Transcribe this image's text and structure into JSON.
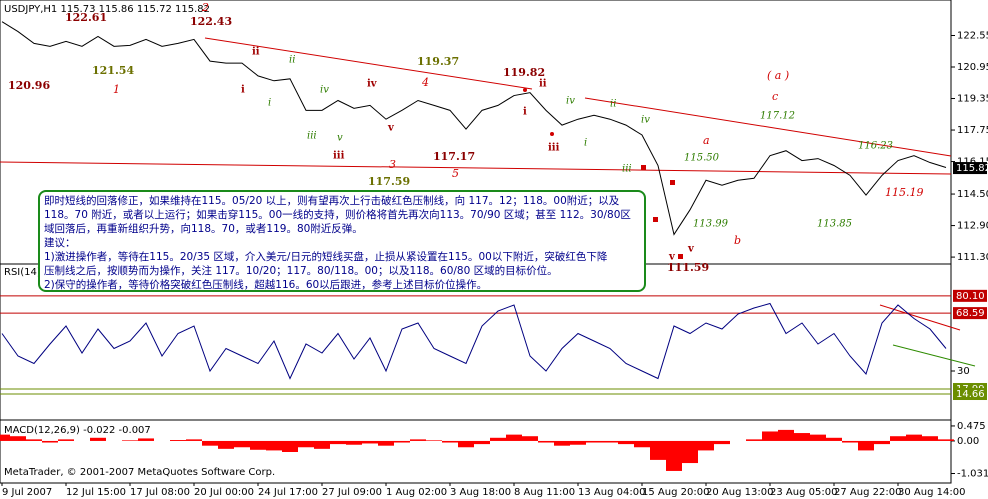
{
  "chart_data": [
    {
      "type": "line",
      "title": "USDJPY,H1  115.73 115.86 115.72 115.82",
      "color": "#000000",
      "values": [
        123.25,
        122.75,
        122.15,
        122.0,
        122.25,
        122.0,
        122.5,
        122.0,
        122.05,
        122.35,
        122.0,
        122.15,
        122.35,
        121.25,
        121.15,
        121.15,
        120.5,
        120.25,
        120.35,
        118.75,
        118.75,
        119.25,
        118.85,
        119.0,
        118.3,
        118.75,
        119.25,
        119.0,
        118.75,
        117.8,
        118.75,
        119.0,
        119.5,
        119.65,
        118.75,
        118.0,
        118.3,
        118.5,
        118.3,
        118.0,
        117.5,
        115.95,
        112.45,
        113.7,
        115.2,
        114.95,
        115.2,
        115.3,
        116.45,
        116.7,
        116.2,
        116.3,
        115.95,
        115.45,
        114.45,
        115.45,
        116.2,
        116.45,
        116.1,
        115.85
      ],
      "ylim": [
        111.0,
        124.25
      ],
      "yticks": [
        122.55,
        120.95,
        119.35,
        117.75,
        116.15,
        {
          "value": 114.5,
          "label": "114.50"
        },
        {
          "value": 112.9,
          "label": "112.90"
        },
        {
          "value": 111.3,
          "label": "111.30"
        }
      ],
      "last": 115.82,
      "annotations": [
        "122.61",
        "122.43",
        "120.96",
        "121.54",
        "119.82",
        "119.37",
        "117.17",
        "117.59",
        "111.59",
        "2",
        "1",
        "4",
        "3",
        "5",
        "( a )",
        "a",
        "b",
        "c",
        "115.19",
        "ii",
        "i",
        "iv",
        "iii",
        "v",
        "ii",
        "i",
        "iii",
        "v",
        "v",
        "ii",
        "i",
        "iv",
        "v",
        "iii",
        "iv",
        "ii",
        "i",
        "iii",
        "iv",
        "115.50",
        "117.12",
        "116.23",
        "113.99",
        "113.85"
      ]
    },
    {
      "type": "line",
      "title": "RSI(14)",
      "color": "#000080",
      "values": [
        55,
        40,
        35,
        48,
        60,
        42,
        58,
        45,
        50,
        62,
        40,
        55,
        60,
        30,
        45,
        40,
        35,
        50,
        25,
        48,
        42,
        55,
        38,
        52,
        30,
        58,
        62,
        45,
        40,
        35,
        60,
        70,
        74,
        40,
        30,
        45,
        55,
        50,
        45,
        35,
        30,
        25,
        60,
        55,
        62,
        58,
        68,
        72,
        75,
        55,
        62,
        48,
        55,
        40,
        28,
        62,
        74,
        65,
        58,
        45
      ],
      "ylim": [
        0,
        100
      ],
      "yticks": [
        30
      ],
      "levels": [
        {
          "value": 80.1,
          "label": "80.10",
          "color": "#c00000"
        },
        {
          "value": 68.59,
          "color": "#c00000"
        },
        {
          "value": 17.99,
          "color": "#6b8e00"
        },
        {
          "value": 14.66,
          "color": "#6b8e00"
        }
      ]
    },
    {
      "type": "bar",
      "title": "MACD(12,26,9) -0.022 -0.007",
      "color": "#ff0000",
      "categories": [
        "9 Jul 2007",
        null,
        null,
        null,
        "12 Jul 15:00",
        null,
        null,
        null,
        "17 Jul 08:00",
        null,
        null,
        null,
        "20 Jul 00:00",
        null,
        null,
        null,
        "24 Jul 17:00",
        null,
        null,
        null,
        "27 Jul 09:00",
        null,
        null,
        null,
        "1 Aug 02:00",
        null,
        null,
        null,
        "3 Aug 18:00",
        null,
        null,
        null,
        "8 Aug 11:00",
        null,
        null,
        null,
        "13 Aug 04:00",
        null,
        null,
        null,
        "15 Aug 20:00",
        null,
        null,
        null,
        "20 Aug 13:00",
        null,
        null,
        null,
        "23 Aug 05:00",
        null,
        null,
        null,
        "27 Aug 22:00",
        null,
        null,
        null,
        "30 Aug 14:00",
        null,
        null,
        null
      ],
      "values": [
        0.2,
        0.15,
        0.05,
        -0.05,
        0.05,
        0.0,
        0.1,
        0.0,
        0.02,
        0.08,
        0.0,
        0.03,
        0.05,
        -0.15,
        -0.25,
        -0.2,
        -0.28,
        -0.3,
        -0.35,
        -0.2,
        -0.25,
        -0.1,
        -0.12,
        -0.08,
        -0.15,
        -0.05,
        0.05,
        0.02,
        -0.05,
        -0.2,
        -0.1,
        0.1,
        0.2,
        0.15,
        -0.05,
        -0.15,
        -0.12,
        -0.05,
        -0.05,
        -0.1,
        -0.2,
        -0.6,
        -0.95,
        -0.7,
        -0.3,
        -0.1,
        0.0,
        0.05,
        0.3,
        0.35,
        0.25,
        0.2,
        0.1,
        -0.05,
        -0.3,
        -0.1,
        0.15,
        0.2,
        0.15,
        0.05
      ],
      "ylim": [
        -1.3,
        0.6
      ],
      "yticks": [
        0.475,
        {
          "value": 0,
          "label": "0.00"
        },
        -1.031
      ]
    }
  ],
  "note": [
    "即时短线的回落修正，如果维持在115。05/20 以上，则有望再次上行击破红色压制线，向 117。12；118。00附近；以及",
    "118。70 附近，或者以上运行；如果击穿115。00一线的支持，则价格将首先再次向113。70/90 区域；甚至 112。30/80区",
    "域回落后，再重新组织升势，向118。70，或者119。80附近反弹。",
    "建议：",
    "1)激进操作者，等待在115。20/35 区域，介入美元/日元的短线买盘，止损从紧设置在115。00以下附近，突破红色下降",
    "压制线之后，按顺势而为操作，关注 117。10/20；117。80/118。00；以及118。60/80 区域的目标价位。",
    "2)保守的操作者，等待价格突破红色压制线，超越116。60以后跟进，参考上述目标价位操作。"
  ],
  "footer": "MetaTrader, © 2001-2007 MetaQuotes Software Corp."
}
